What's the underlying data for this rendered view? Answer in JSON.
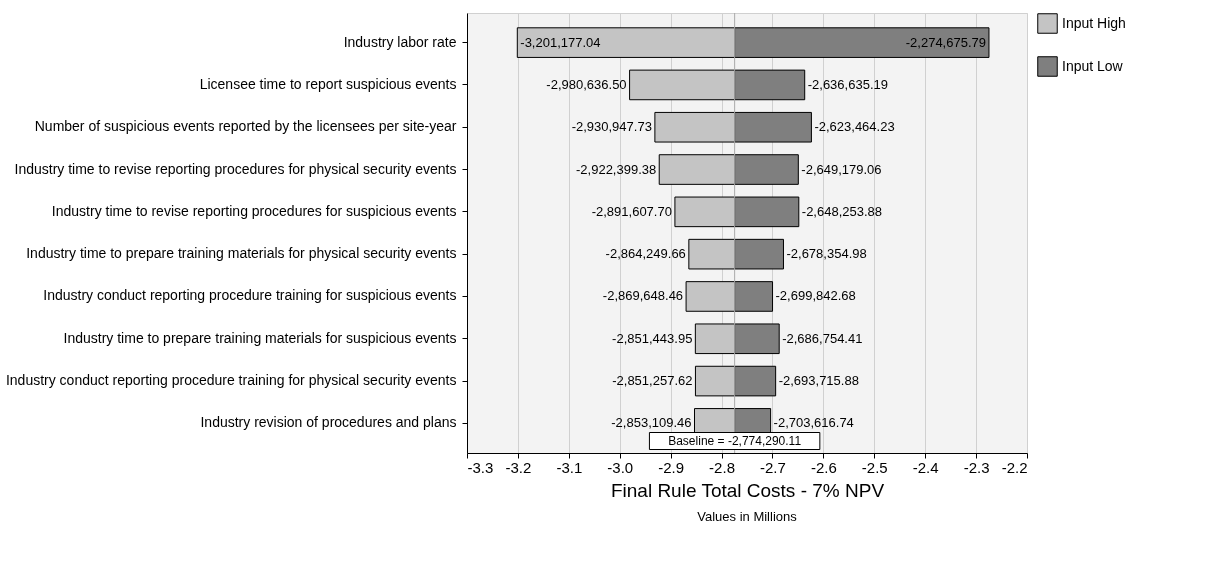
{
  "chart_data": {
    "type": "bar",
    "orientation": "horizontal",
    "xlabel": "Final Rule Total Costs - 7% NPV",
    "annotations": [
      "Values in Millions",
      {
        "text": "-3,201,177.04",
        "x": -3.20117704,
        "y": "Industry labor rate"
      },
      {
        "text": "-2,980,636.50",
        "x": -2.9806365,
        "y": "Licensee time to report suspicious events"
      },
      {
        "text": "-2,930,947.73",
        "x": -2.93094773,
        "y": "Number of suspicious events reported by the licensees per site-year"
      },
      {
        "text": "-2,922,399.38",
        "x": -2.92239938,
        "y": "Industry time to revise reporting procedures for physical security events"
      },
      {
        "text": "-2,891,607.70",
        "x": -2.8916077,
        "y": "Industry time to revise reporting procedures for suspicious events"
      },
      {
        "text": "-2,864,249.66",
        "x": -2.86424966,
        "y": "Industry time to prepare training materials for physical security events"
      },
      {
        "text": "-2,869,648.46",
        "x": -2.86964846,
        "y": "Industry conduct reporting procedure training for suspicious events"
      },
      {
        "text": "-2,851,443.95",
        "x": -2.85144395,
        "y": "Industry time to prepare training materials for suspicious events"
      },
      {
        "text": "-2,851,257.62",
        "x": -2.85125762,
        "y": "Industry conduct reporting procedure training for physical security events"
      },
      {
        "text": "-2,853,109.46",
        "x": -2.85310946,
        "y": "Industry revision of procedures and plans"
      },
      {
        "text": "-2,274,675.79",
        "x": -2.27467579,
        "y": "Industry labor rate"
      },
      {
        "text": "-2,636,635.19",
        "x": -2.63663519,
        "y": "Licensee time to report suspicious events"
      },
      {
        "text": "-2,623,464.23",
        "x": -2.62346423,
        "y": "Number of suspicious events reported by the licensees per site-year"
      },
      {
        "text": "-2,649,179.06",
        "x": -2.64917906,
        "y": "Industry time to revise reporting procedures for physical security events"
      },
      {
        "text": "-2,648,253.88",
        "x": -2.64825388,
        "y": "Industry time to revise reporting procedures for suspicious events"
      },
      {
        "text": "-2,678,354.98",
        "x": -2.67835498,
        "y": "Industry time to prepare training materials for physical security events"
      },
      {
        "text": "-2,699,842.68",
        "x": -2.69984268,
        "y": "Industry conduct reporting procedure training for suspicious events"
      },
      {
        "text": "-2,686,754.41",
        "x": -2.68675441,
        "y": "Industry time to prepare training materials for suspicious events"
      },
      {
        "text": "-2,693,715.88",
        "x": -2.69371588,
        "y": "Industry conduct reporting procedure training for physical security events"
      },
      {
        "text": "-2,703,616.74",
        "x": -2.70361674,
        "y": "Industry revision of procedures and plans"
      }
    ],
    "categories": [
      "Industry labor rate",
      "Licensee time to report suspicious events",
      "Number of suspicious events reported by the licensees per site-year",
      "Industry time to revise reporting procedures for physical security events",
      "Industry time to revise reporting procedures for suspicious events",
      "Industry time to prepare training materials for physical security events",
      "Industry conduct reporting procedure training for suspicious events",
      "Industry time to prepare training materials for suspicious events",
      "Industry conduct reporting procedure training for physical security events",
      "Industry revision of procedures and plans"
    ],
    "series": [
      {
        "name": "Input High",
        "color": "#c4c4c4",
        "base": [
          -2.77429011,
          -2.77429011,
          -2.77429011,
          -2.77429011,
          -2.77429011,
          -2.77429011,
          -2.77429011,
          -2.77429011,
          -2.77429011,
          -2.77429011
        ],
        "values": [
          -0.42688693,
          -0.20634639,
          -0.15665762,
          -0.14810927,
          -0.11731759,
          -0.08995955,
          -0.09535835,
          -0.07715384,
          -0.07696751,
          -0.07881935
        ]
      },
      {
        "name": "Input Low",
        "color": "#7f7f7f",
        "base": [
          -2.77429011,
          -2.77429011,
          -2.77429011,
          -2.77429011,
          -2.77429011,
          -2.77429011,
          -2.77429011,
          -2.77429011,
          -2.77429011,
          -2.77429011
        ],
        "values": [
          0.49961432,
          0.13765492,
          0.15082588,
          0.12511105,
          0.12603623,
          0.09593513,
          0.07444743,
          0.0875357,
          0.08057423,
          0.07067337
        ]
      }
    ],
    "ref_lines": [
      {
        "axis": "x",
        "value": -2.77429011,
        "label": "Baseline = -2,774,290.11",
        "color": "#aaaaaa"
      }
    ],
    "xlim": [
      -3.3,
      -2.2
    ],
    "xticks": [
      {
        "value": -3.3,
        "label": "-3.3"
      },
      {
        "value": -3.2,
        "label": "-3.2"
      },
      {
        "value": -3.1,
        "label": "-3.1"
      },
      {
        "value": -3.0,
        "label": "-3.0"
      },
      {
        "value": -2.9,
        "label": "-2.9"
      },
      {
        "value": -2.8,
        "label": "-2.8"
      },
      {
        "value": -2.7,
        "label": "-2.7"
      },
      {
        "value": -2.6,
        "label": "-2.6"
      },
      {
        "value": -2.5,
        "label": "-2.5"
      },
      {
        "value": -2.4,
        "label": "-2.4"
      },
      {
        "value": -2.3,
        "label": "-2.3"
      },
      {
        "value": -2.2,
        "label": "-2.2"
      }
    ],
    "grid": "x",
    "legend": "right"
  }
}
